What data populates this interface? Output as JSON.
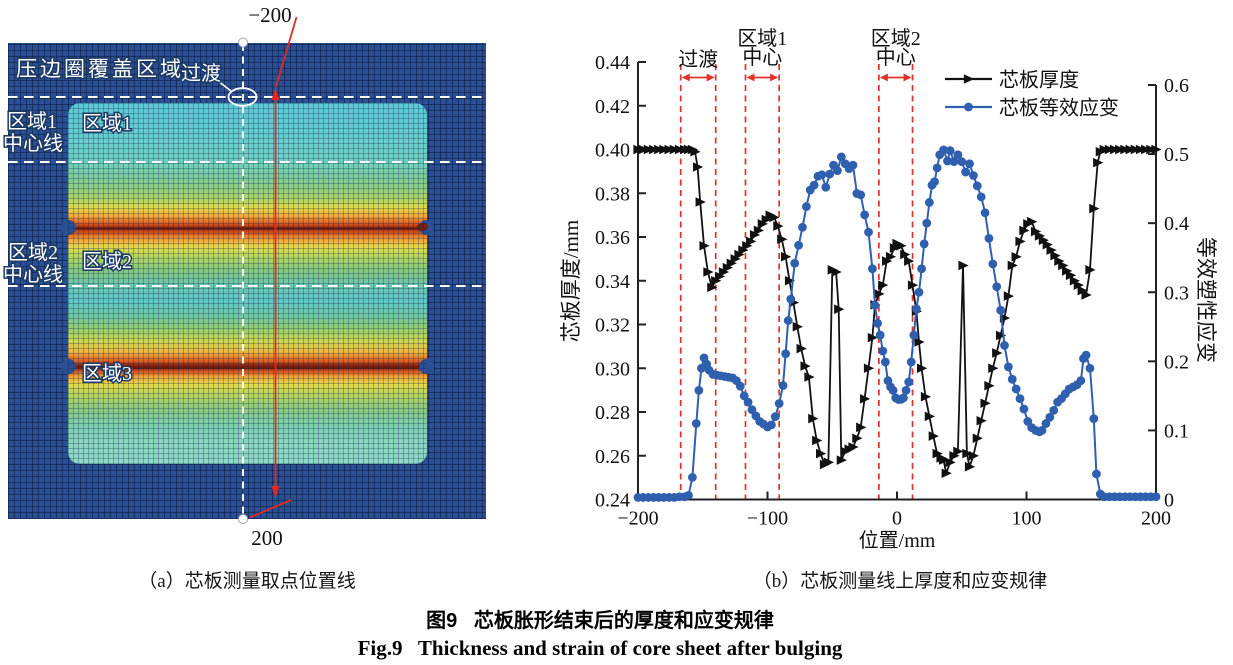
{
  "figure": {
    "title_zh": "图9   芯板胀形结束后的厚度和应变规律",
    "title_en": "Fig.9   Thickness and strain of core sheet after bulging"
  },
  "panel_a": {
    "caption": "（a）芯板测量取点位置线",
    "cover_label": "压边圈覆盖区域",
    "transition_label": "过渡",
    "zone1_centerline_1": "区域1",
    "zone1_centerline_2": "中心线",
    "zone1_label": "区域1",
    "zone2_centerline_1": "区域2",
    "zone2_centerline_2": "中心线",
    "zone2_label": "区域2",
    "zone3_label": "区域3",
    "start_value": "−200",
    "end_value": "200"
  },
  "panel_b": {
    "caption": "（b）芯板测量线上厚度和应变规律"
  },
  "chart_data": {
    "type": "line",
    "xlabel": "位置/mm",
    "ylabel_left": "芯板厚度/mm",
    "ylabel_right": "等效塑性应变",
    "xlim": [
      -200,
      200
    ],
    "ylim_left": [
      0.24,
      0.44
    ],
    "ylim_right": [
      0,
      0.6
    ],
    "x_tick_labels": [
      "−200",
      "−100",
      "0",
      "100",
      "200"
    ],
    "x_tick_values": [
      -200,
      -100,
      0,
      100,
      200
    ],
    "y_left_tick_labels": [
      "0.24",
      "0.26",
      "0.28",
      "0.30",
      "0.32",
      "0.34",
      "0.36",
      "0.38",
      "0.40",
      "0.42",
      "0.44"
    ],
    "y_left_tick_values": [
      0.24,
      0.26,
      0.28,
      0.3,
      0.32,
      0.34,
      0.36,
      0.38,
      0.4,
      0.42,
      0.44
    ],
    "y_right_tick_labels": [
      "0",
      "0.1",
      "0.2",
      "0.3",
      "0.4",
      "0.5",
      "0.6"
    ],
    "y_right_tick_values": [
      0,
      0.1,
      0.2,
      0.3,
      0.4,
      0.5,
      0.6
    ],
    "grid": false,
    "legend_position": "top-inside",
    "accent_color": "#e03228",
    "guides": [
      {
        "x_pair": [
          -167,
          -140
        ],
        "lines": [
          "过渡"
        ]
      },
      {
        "x_pair": [
          -117,
          -91
        ],
        "lines": [
          "区域1",
          "中心"
        ]
      },
      {
        "x_pair": [
          -14,
          12
        ],
        "lines": [
          "区域2",
          "中心"
        ]
      }
    ],
    "series": [
      {
        "name": "芯板厚度",
        "axis": "left",
        "color": "#111111",
        "marker": "triangle-right",
        "points": [
          [
            -200,
            0.4
          ],
          [
            -196,
            0.4
          ],
          [
            -192,
            0.4
          ],
          [
            -188,
            0.4
          ],
          [
            -184,
            0.4
          ],
          [
            -180,
            0.4
          ],
          [
            -176,
            0.4
          ],
          [
            -172,
            0.4
          ],
          [
            -168,
            0.4
          ],
          [
            -164,
            0.4
          ],
          [
            -161,
            0.4
          ],
          [
            -158,
            0.4
          ],
          [
            -156,
            0.399
          ],
          [
            -154,
            0.392
          ],
          [
            -152,
            0.376
          ],
          [
            -149,
            0.356
          ],
          [
            -146,
            0.344
          ],
          [
            -143,
            0.337
          ],
          [
            -140,
            0.34
          ],
          [
            -137,
            0.342
          ],
          [
            -134,
            0.344
          ],
          [
            -131,
            0.346
          ],
          [
            -128,
            0.348
          ],
          [
            -125,
            0.35
          ],
          [
            -122,
            0.352
          ],
          [
            -119,
            0.354
          ],
          [
            -116,
            0.356
          ],
          [
            -113,
            0.358
          ],
          [
            -110,
            0.361
          ],
          [
            -107,
            0.363
          ],
          [
            -104,
            0.366
          ],
          [
            -101,
            0.368
          ],
          [
            -98,
            0.37
          ],
          [
            -95,
            0.369
          ],
          [
            -92,
            0.365
          ],
          [
            -89,
            0.359
          ],
          [
            -86,
            0.351
          ],
          [
            -83,
            0.34
          ],
          [
            -80,
            0.33
          ],
          [
            -77,
            0.319
          ],
          [
            -74,
            0.309
          ],
          [
            -71,
            0.301
          ],
          [
            -68,
            0.296
          ],
          [
            -65,
            0.277
          ],
          [
            -62,
            0.267
          ],
          [
            -59,
            0.261
          ],
          [
            -56,
            0.256
          ],
          [
            -53,
            0.257
          ],
          [
            -50,
            0.345
          ],
          [
            -47,
            0.344
          ],
          [
            -45,
            0.327
          ],
          [
            -43,
            0.258
          ],
          [
            -40,
            0.262
          ],
          [
            -37,
            0.263
          ],
          [
            -34,
            0.264
          ],
          [
            -31,
            0.268
          ],
          [
            -28,
            0.273
          ],
          [
            -25,
            0.286
          ],
          [
            -22,
            0.3
          ],
          [
            -19,
            0.314
          ],
          [
            -17,
            0.329
          ],
          [
            -14,
            0.334
          ],
          [
            -11,
            0.338
          ],
          [
            -8,
            0.349
          ],
          [
            -5,
            0.351
          ],
          [
            -2,
            0.355
          ],
          [
            0,
            0.357
          ],
          [
            3,
            0.356
          ],
          [
            6,
            0.352
          ],
          [
            9,
            0.349
          ],
          [
            12,
            0.338
          ],
          [
            15,
            0.326
          ],
          [
            17,
            0.312
          ],
          [
            19,
            0.3
          ],
          [
            22,
            0.287
          ],
          [
            25,
            0.278
          ],
          [
            28,
            0.269
          ],
          [
            31,
            0.261
          ],
          [
            34,
            0.259
          ],
          [
            36,
            0.258
          ],
          [
            38,
            0.252
          ],
          [
            41,
            0.257
          ],
          [
            44,
            0.26
          ],
          [
            47,
            0.262
          ],
          [
            51,
            0.347
          ],
          [
            54,
            0.261
          ],
          [
            56,
            0.255
          ],
          [
            59,
            0.26
          ],
          [
            62,
            0.268
          ],
          [
            65,
            0.276
          ],
          [
            68,
            0.284
          ],
          [
            71,
            0.292
          ],
          [
            74,
            0.3
          ],
          [
            77,
            0.307
          ],
          [
            80,
            0.315
          ],
          [
            83,
            0.323
          ],
          [
            86,
            0.333
          ],
          [
            89,
            0.347
          ],
          [
            92,
            0.351
          ],
          [
            95,
            0.358
          ],
          [
            98,
            0.363
          ],
          [
            101,
            0.366
          ],
          [
            104,
            0.367
          ],
          [
            107,
            0.3625
          ],
          [
            110,
            0.3605
          ],
          [
            113,
            0.3585
          ],
          [
            116,
            0.3565
          ],
          [
            119,
            0.354
          ],
          [
            122,
            0.3515
          ],
          [
            125,
            0.349
          ],
          [
            128,
            0.347
          ],
          [
            131,
            0.3445
          ],
          [
            134,
            0.3425
          ],
          [
            137,
            0.34
          ],
          [
            140,
            0.338
          ],
          [
            143,
            0.3355
          ],
          [
            146,
            0.3335
          ],
          [
            149,
            0.345
          ],
          [
            152,
            0.373
          ],
          [
            155,
            0.394
          ],
          [
            157,
            0.399
          ],
          [
            160,
            0.4
          ],
          [
            164,
            0.4
          ],
          [
            168,
            0.4
          ],
          [
            172,
            0.4
          ],
          [
            176,
            0.4
          ],
          [
            180,
            0.4
          ],
          [
            184,
            0.4
          ],
          [
            188,
            0.4
          ],
          [
            192,
            0.4
          ],
          [
            196,
            0.4
          ],
          [
            200,
            0.4
          ]
        ]
      },
      {
        "name": "芯板等效应变",
        "axis": "right",
        "color": "#2f5faf",
        "marker": "circle",
        "points": [
          [
            -200,
            0.003
          ],
          [
            -196,
            0.003
          ],
          [
            -192,
            0.003
          ],
          [
            -188,
            0.003
          ],
          [
            -184,
            0.003
          ],
          [
            -180,
            0.003
          ],
          [
            -176,
            0.003
          ],
          [
            -172,
            0.003
          ],
          [
            -168,
            0.004
          ],
          [
            -164,
            0.004
          ],
          [
            -161,
            0.006
          ],
          [
            -158,
            0.032
          ],
          [
            -155,
            0.11
          ],
          [
            -153,
            0.158
          ],
          [
            -151,
            0.19
          ],
          [
            -149,
            0.205
          ],
          [
            -147,
            0.196
          ],
          [
            -145,
            0.187
          ],
          [
            -142,
            0.181
          ],
          [
            -139,
            0.18
          ],
          [
            -136,
            0.179
          ],
          [
            -133,
            0.178
          ],
          [
            -130,
            0.177
          ],
          [
            -127,
            0.176
          ],
          [
            -124,
            0.172
          ],
          [
            -121,
            0.164
          ],
          [
            -118,
            0.15
          ],
          [
            -115,
            0.141
          ],
          [
            -112,
            0.13
          ],
          [
            -109,
            0.121
          ],
          [
            -106,
            0.113
          ],
          [
            -103,
            0.109
          ],
          [
            -100,
            0.105
          ],
          [
            -97,
            0.108
          ],
          [
            -94,
            0.12
          ],
          [
            -91,
            0.139
          ],
          [
            -88,
            0.165
          ],
          [
            -86,
            0.211
          ],
          [
            -84,
            0.259
          ],
          [
            -82,
            0.29
          ],
          [
            -79,
            0.342
          ],
          [
            -76,
            0.368
          ],
          [
            -73,
            0.394
          ],
          [
            -70,
            0.424
          ],
          [
            -67,
            0.448
          ],
          [
            -64,
            0.455
          ],
          [
            -61,
            0.468
          ],
          [
            -58,
            0.47
          ],
          [
            -55,
            0.452
          ],
          [
            -52,
            0.471
          ],
          [
            -49,
            0.484
          ],
          [
            -46,
            0.476
          ],
          [
            -43,
            0.496
          ],
          [
            -40,
            0.486
          ],
          [
            -37,
            0.479
          ],
          [
            -34,
            0.484
          ],
          [
            -31,
            0.443
          ],
          [
            -28,
            0.441
          ],
          [
            -25,
            0.412
          ],
          [
            -22,
            0.387
          ],
          [
            -19,
            0.334
          ],
          [
            -17,
            0.281
          ],
          [
            -15,
            0.255
          ],
          [
            -13,
            0.238
          ],
          [
            -11,
            0.215
          ],
          [
            -9,
            0.199
          ],
          [
            -7,
            0.172
          ],
          [
            -5,
            0.163
          ],
          [
            -3,
            0.158
          ],
          [
            -1,
            0.147
          ],
          [
            1,
            0.145
          ],
          [
            3,
            0.145
          ],
          [
            5,
            0.147
          ],
          [
            7,
            0.158
          ],
          [
            9,
            0.17
          ],
          [
            11,
            0.199
          ],
          [
            13,
            0.238
          ],
          [
            15,
            0.276
          ],
          [
            17,
            0.3
          ],
          [
            19,
            0.334
          ],
          [
            21,
            0.37
          ],
          [
            23,
            0.4
          ],
          [
            25,
            0.43
          ],
          [
            27,
            0.455
          ],
          [
            29,
            0.46
          ],
          [
            31,
            0.48
          ],
          [
            33,
            0.499
          ],
          [
            36,
            0.506
          ],
          [
            39,
            0.49
          ],
          [
            41,
            0.505
          ],
          [
            44,
            0.489
          ],
          [
            47,
            0.499
          ],
          [
            50,
            0.489
          ],
          [
            53,
            0.474
          ],
          [
            56,
            0.486
          ],
          [
            59,
            0.469
          ],
          [
            62,
            0.454
          ],
          [
            65,
            0.438
          ],
          [
            68,
            0.415
          ],
          [
            71,
            0.378
          ],
          [
            74,
            0.341
          ],
          [
            77,
            0.308
          ],
          [
            80,
            0.274
          ],
          [
            83,
            0.223
          ],
          [
            86,
            0.192
          ],
          [
            89,
            0.174
          ],
          [
            92,
            0.16
          ],
          [
            95,
            0.146
          ],
          [
            98,
            0.131
          ],
          [
            101,
            0.113
          ],
          [
            104,
            0.104
          ],
          [
            107,
            0.1
          ],
          [
            110,
            0.098
          ],
          [
            112,
            0.1
          ],
          [
            115,
            0.11
          ],
          [
            118,
            0.119
          ],
          [
            121,
            0.129
          ],
          [
            124,
            0.141
          ],
          [
            127,
            0.146
          ],
          [
            130,
            0.153
          ],
          [
            133,
            0.16
          ],
          [
            136,
            0.163
          ],
          [
            139,
            0.166
          ],
          [
            142,
            0.172
          ],
          [
            144,
            0.204
          ],
          [
            146,
            0.209
          ],
          [
            149,
            0.19
          ],
          [
            152,
            0.117
          ],
          [
            154,
            0.037
          ],
          [
            157,
            0.008
          ],
          [
            160,
            0.004
          ],
          [
            164,
            0.004
          ],
          [
            168,
            0.004
          ],
          [
            172,
            0.004
          ],
          [
            176,
            0.004
          ],
          [
            180,
            0.004
          ],
          [
            184,
            0.004
          ],
          [
            188,
            0.004
          ],
          [
            192,
            0.004
          ],
          [
            196,
            0.004
          ],
          [
            200,
            0.004
          ]
        ]
      }
    ]
  }
}
